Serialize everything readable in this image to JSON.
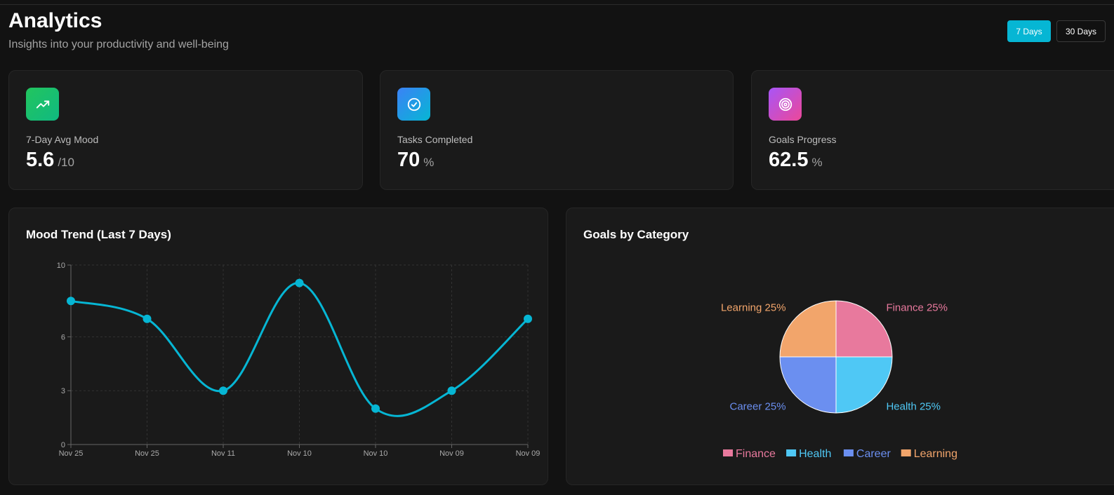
{
  "header": {
    "title": "Analytics",
    "subtitle": "Insights into your productivity and well-being"
  },
  "range_buttons": [
    {
      "label": "7 Days",
      "active": true
    },
    {
      "label": "30 Days",
      "active": false
    }
  ],
  "stats": [
    {
      "label": "7-Day Avg Mood",
      "value": "5.6",
      "unit": "/10",
      "icon": "trending-up-icon",
      "gradient": [
        "#22c55e",
        "#10b981"
      ]
    },
    {
      "label": "Tasks Completed",
      "value": "70",
      "unit": "%",
      "icon": "check-circle-icon",
      "gradient": [
        "#3b82f6",
        "#06b6d4"
      ]
    },
    {
      "label": "Goals Progress",
      "value": "62.5",
      "unit": "%",
      "icon": "target-icon",
      "gradient": [
        "#a855f7",
        "#ec4899"
      ]
    }
  ],
  "mood_chart": {
    "title": "Mood Trend (Last 7 Days)"
  },
  "goals_chart": {
    "title": "Goals by Category"
  },
  "colors": {
    "accent": "#06b6d4",
    "finance": "#e8799d",
    "health": "#4fc8f5",
    "career": "#6b8ff0",
    "learning": "#f2a56b"
  },
  "chart_data": [
    {
      "type": "line",
      "title": "Mood Trend (Last 7 Days)",
      "categories": [
        "Nov 25",
        "Nov 25",
        "Nov 11",
        "Nov 10",
        "Nov 10",
        "Nov 09",
        "Nov 09"
      ],
      "values": [
        8,
        7,
        3,
        9,
        2,
        3,
        7
      ],
      "ylim": [
        0,
        10
      ],
      "yticks": [
        0,
        3,
        6,
        10
      ],
      "grid": true,
      "xlabel": "",
      "ylabel": ""
    },
    {
      "type": "pie",
      "title": "Goals by Category",
      "categories": [
        "Finance",
        "Health",
        "Career",
        "Learning"
      ],
      "values": [
        25,
        25,
        25,
        25
      ],
      "labels": [
        "Finance 25%",
        "Health 25%",
        "Career 25%",
        "Learning 25%"
      ],
      "legend": [
        "Finance",
        "Health",
        "Career",
        "Learning"
      ],
      "legend_position": "bottom"
    }
  ]
}
